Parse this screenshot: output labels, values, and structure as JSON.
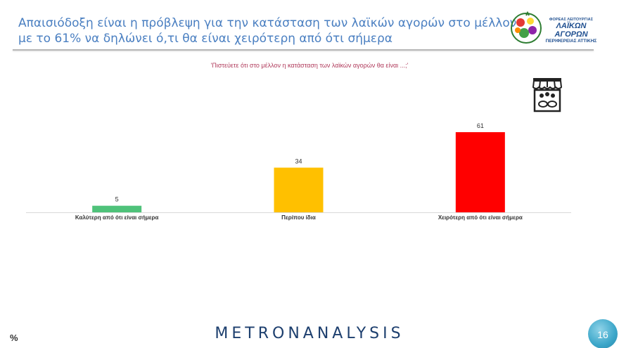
{
  "header": {
    "title_line1": "Απαισιόδοξη είναι η πρόβλεψη για την κατάσταση των λαϊκών αγορών στο μέλλον",
    "title_line2": "με το 61% να δηλώνει ό,τι θα είναι χειρότερη από ότι σήμερα"
  },
  "logo": {
    "line1": "ΦΟΡΕΑΣ ΛΕΙΤΟΥΡΓΙΑΣ",
    "line2": "ΛΑΪΚΩΝ ΑΓΟΡΩΝ",
    "line3": "ΠΕΡΙΦΕΡΕΙΑΣ ΑΤΤΙΚΗΣ"
  },
  "question": "'Πιστεύετε ότι στο μέλλον η κατάσταση των λαϊκών αγορών θα είναι ...;'",
  "icons": {
    "market": "market-stall-icon",
    "logo": "produce-circle-logo-icon"
  },
  "chart_data": {
    "type": "bar",
    "title": "",
    "xlabel": "",
    "ylabel": "",
    "ylim": [
      0,
      61
    ],
    "grid": false,
    "categories": [
      "Καλύτερη από ότι είναι σήμερα",
      "Περίπου ίδια",
      "Χειρότερη από ότι είναι σήμερα"
    ],
    "values": [
      5,
      34,
      61
    ],
    "colors": [
      "#4fc27a",
      "#ffc000",
      "#ff0000"
    ]
  },
  "footer": {
    "unit": "%",
    "brand": "METRONANALYSIS",
    "page": "16"
  }
}
